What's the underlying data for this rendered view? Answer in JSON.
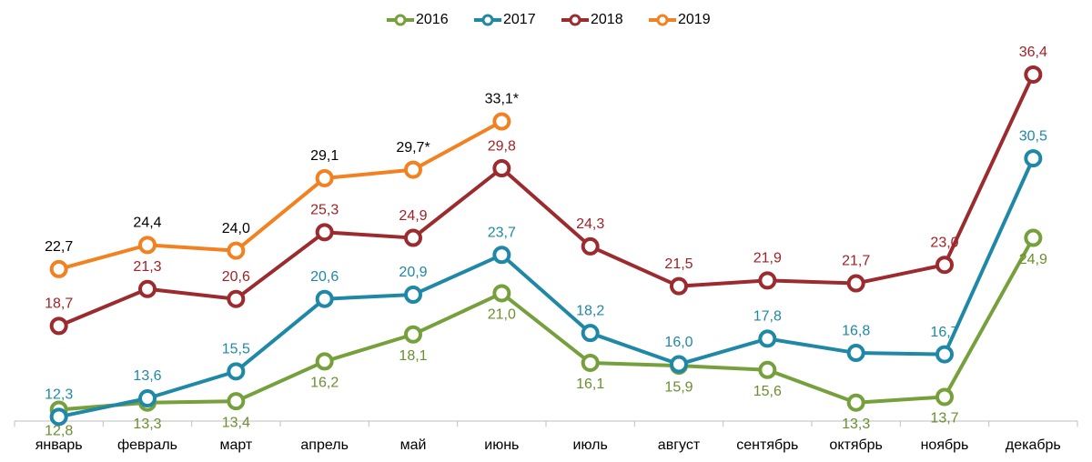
{
  "chart_data": {
    "type": "line",
    "categories": [
      "январь",
      "февраль",
      "март",
      "апрель",
      "май",
      "июнь",
      "июль",
      "август",
      "сентябрь",
      "октябрь",
      "ноябрь",
      "декабрь"
    ],
    "series": [
      {
        "name": "2016",
        "color": "#76a03c",
        "label_color": "#6b8e2e",
        "values": [
          12.8,
          13.3,
          13.4,
          16.2,
          18.1,
          21.0,
          16.1,
          15.9,
          15.6,
          13.3,
          13.7,
          24.9
        ],
        "value_labels": [
          "12,8",
          "13,3",
          "13,4",
          "16,2",
          "18,1",
          "21,0",
          "16,1",
          "15,9",
          "15,6",
          "13,3",
          "13,7",
          "24,9"
        ]
      },
      {
        "name": "2017",
        "color": "#1f88a6",
        "label_color": "#1f88a6",
        "values": [
          12.3,
          13.6,
          15.5,
          20.6,
          20.9,
          23.7,
          18.2,
          16.0,
          17.8,
          16.8,
          16.7,
          30.5
        ],
        "value_labels": [
          "12,3",
          "13,6",
          "15,5",
          "20,6",
          "20,9",
          "23,7",
          "18,2",
          "16,0",
          "17,8",
          "16,8",
          "16,7",
          "30,5"
        ]
      },
      {
        "name": "2018",
        "color": "#9b2b2e",
        "label_color": "#a32126",
        "values": [
          18.7,
          21.3,
          20.6,
          25.3,
          24.9,
          29.8,
          24.3,
          21.5,
          21.9,
          21.7,
          23.0,
          36.4
        ],
        "value_labels": [
          "18,7",
          "21,3",
          "20,6",
          "25,3",
          "24,9",
          "29,8",
          "24,3",
          "21,5",
          "21,9",
          "21,7",
          "23,0",
          "36,4"
        ]
      },
      {
        "name": "2019",
        "color": "#f28121",
        "label_color": "#000000",
        "values": [
          22.7,
          24.4,
          24.0,
          29.1,
          29.7,
          33.1,
          null,
          null,
          null,
          null,
          null,
          null
        ],
        "value_labels": [
          "22,7",
          "24,4",
          "24,0",
          "29,1",
          "29,7*",
          "33,1*",
          null,
          null,
          null,
          null,
          null,
          null
        ]
      }
    ],
    "ylim": [
      12,
      38
    ],
    "legend": "top"
  }
}
